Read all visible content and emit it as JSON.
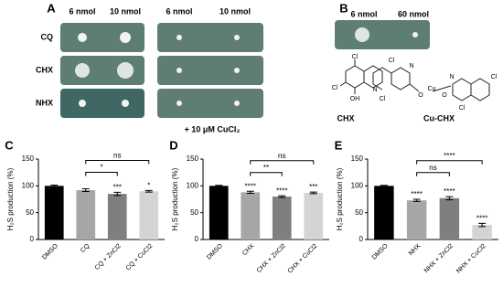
{
  "panel_labels": [
    "A",
    "B",
    "C",
    "D",
    "E"
  ],
  "panel_a": {
    "column_headers": [
      "6 nmol",
      "10 nmol",
      "6 nmol",
      "10 nmol"
    ],
    "row_labels": [
      "CQ",
      "CHX",
      "NHX"
    ],
    "note": "+ 10 μM CuCl₂"
  },
  "panel_b": {
    "column_headers": [
      "6 nmol",
      "60 nmol"
    ],
    "structure_labels": [
      "CHX",
      "Cu-CHX"
    ],
    "atoms": [
      "Cl",
      "Cl",
      "OH",
      "N",
      "Cl",
      "Cl",
      "N",
      "O",
      "Cu",
      "O",
      "N",
      "Cl",
      "Cl"
    ]
  },
  "chart_data": [
    {
      "type": "bar",
      "y_label": "H₂S production (%)",
      "categories": [
        "DMSO",
        "CQ",
        "CQ + ZnCl2",
        "CQ + CuCl2"
      ],
      "values": [
        100,
        92,
        85,
        90
      ],
      "errors": [
        1.5,
        2.5,
        3,
        1.5
      ],
      "colors": [
        "#000000",
        "#a6a6a6",
        "#7f7f7f",
        "#d4d4d4"
      ],
      "ylim": [
        0,
        150
      ],
      "yticks": [
        0,
        50,
        100,
        150
      ],
      "significance": [
        null,
        null,
        "***",
        "*"
      ],
      "comparisons": [
        {
          "between": [
            1,
            2
          ],
          "label": "*"
        },
        {
          "between": [
            1,
            3
          ],
          "label": "ns"
        }
      ]
    },
    {
      "type": "bar",
      "y_label": "H₂S production (%)",
      "categories": [
        "DMSO",
        "CHX",
        "CHX + ZnCl2",
        "CHX + CuCl2"
      ],
      "values": [
        100,
        88,
        80,
        87
      ],
      "errors": [
        1,
        2,
        1.5,
        1.5
      ],
      "colors": [
        "#000000",
        "#a6a6a6",
        "#7f7f7f",
        "#d4d4d4"
      ],
      "ylim": [
        0,
        150
      ],
      "yticks": [
        0,
        50,
        100,
        150
      ],
      "significance": [
        null,
        "****",
        "****",
        "***"
      ],
      "comparisons": [
        {
          "between": [
            1,
            2
          ],
          "label": "**"
        },
        {
          "between": [
            1,
            3
          ],
          "label": "ns"
        }
      ]
    },
    {
      "type": "bar",
      "y_label": "H₂S production (%)",
      "categories": [
        "DMSO",
        "NHX",
        "NHX + ZnCl2",
        "NHX + CuCl2"
      ],
      "values": [
        100,
        73,
        77,
        27
      ],
      "errors": [
        1,
        2,
        3,
        3
      ],
      "colors": [
        "#000000",
        "#a6a6a6",
        "#7f7f7f",
        "#d4d4d4"
      ],
      "ylim": [
        0,
        150
      ],
      "yticks": [
        0,
        50,
        100,
        150
      ],
      "significance": [
        null,
        "****",
        "****",
        "****"
      ],
      "comparisons": [
        {
          "between": [
            1,
            2
          ],
          "label": "ns"
        },
        {
          "between": [
            1,
            3
          ],
          "label": "****"
        }
      ]
    }
  ]
}
